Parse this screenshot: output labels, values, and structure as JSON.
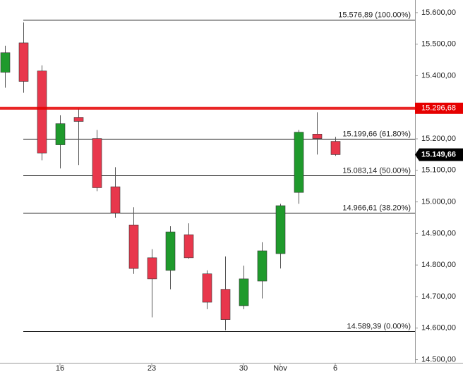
{
  "chart_data": {
    "type": "candlestick",
    "categories": [
      null,
      null,
      null,
      "16",
      null,
      null,
      null,
      null,
      "23",
      null,
      null,
      null,
      null,
      "30",
      null,
      "Nov",
      null,
      null,
      "6"
    ],
    "series": [
      {
        "name": "open",
        "values": [
          15411,
          15504,
          15415,
          15181,
          15268,
          15201,
          15048,
          14927,
          14823,
          14783,
          14896,
          14772,
          14723,
          14671,
          14749,
          14836,
          15030,
          15215,
          15192
        ]
      },
      {
        "name": "high",
        "values": [
          15495,
          15569,
          15433,
          15275,
          15295,
          15228,
          15110,
          14983,
          14850,
          14923,
          14932,
          14783,
          14827,
          14798,
          14872,
          14994,
          15228,
          15284,
          15206
        ]
      },
      {
        "name": "low",
        "values": [
          15362,
          15346,
          15132,
          15106,
          15117,
          15034,
          14950,
          14772,
          14634,
          14723,
          14820,
          14660,
          14593,
          14660,
          14694,
          14789,
          14994,
          15150,
          15146
        ]
      },
      {
        "name": "close",
        "values": [
          15473,
          15382,
          15155,
          15248,
          15255,
          15045,
          14965,
          14789,
          14756,
          14905,
          14823,
          14682,
          14627,
          14756,
          14845,
          14988,
          15221,
          15201,
          15150
        ]
      }
    ],
    "up_color": "#1f9a2c",
    "down_color": "#e8374c",
    "ylim": [
      14490,
      15640
    ],
    "yticks": [
      {
        "value": 15600,
        "label": "15.600,00"
      },
      {
        "value": 15500,
        "label": "15.500,00"
      },
      {
        "value": 15400,
        "label": "15.400,00"
      },
      {
        "value": 15300,
        "label": "15.300,00"
      },
      {
        "value": 15200,
        "label": "15.200,00"
      },
      {
        "value": 15100,
        "label": "15.100,00"
      },
      {
        "value": 15000,
        "label": "15.000,00"
      },
      {
        "value": 14900,
        "label": "14.900,00"
      },
      {
        "value": 14800,
        "label": "14.800,00"
      },
      {
        "value": 14700,
        "label": "14.700,00"
      },
      {
        "value": 14600,
        "label": "14.600,00"
      },
      {
        "value": 14500,
        "label": "14.500,00"
      }
    ],
    "fib_levels": [
      {
        "value": 15576.89,
        "label": "15.576,89 (100.00%)"
      },
      {
        "value": 15199.66,
        "label": "15.199,66 (61.80%)"
      },
      {
        "value": 15083.14,
        "label": "15.083,14 (50.00%)"
      },
      {
        "value": 14966.61,
        "label": "14.966,61 (38.20%)"
      },
      {
        "value": 14589.39,
        "label": "14.589,39 (0.00%)"
      }
    ],
    "alert_line": {
      "value": 15296.68,
      "label": "15.296,68",
      "color": "#e60000"
    },
    "last_price": {
      "value": 15149.66,
      "label": "15.149,66"
    }
  }
}
